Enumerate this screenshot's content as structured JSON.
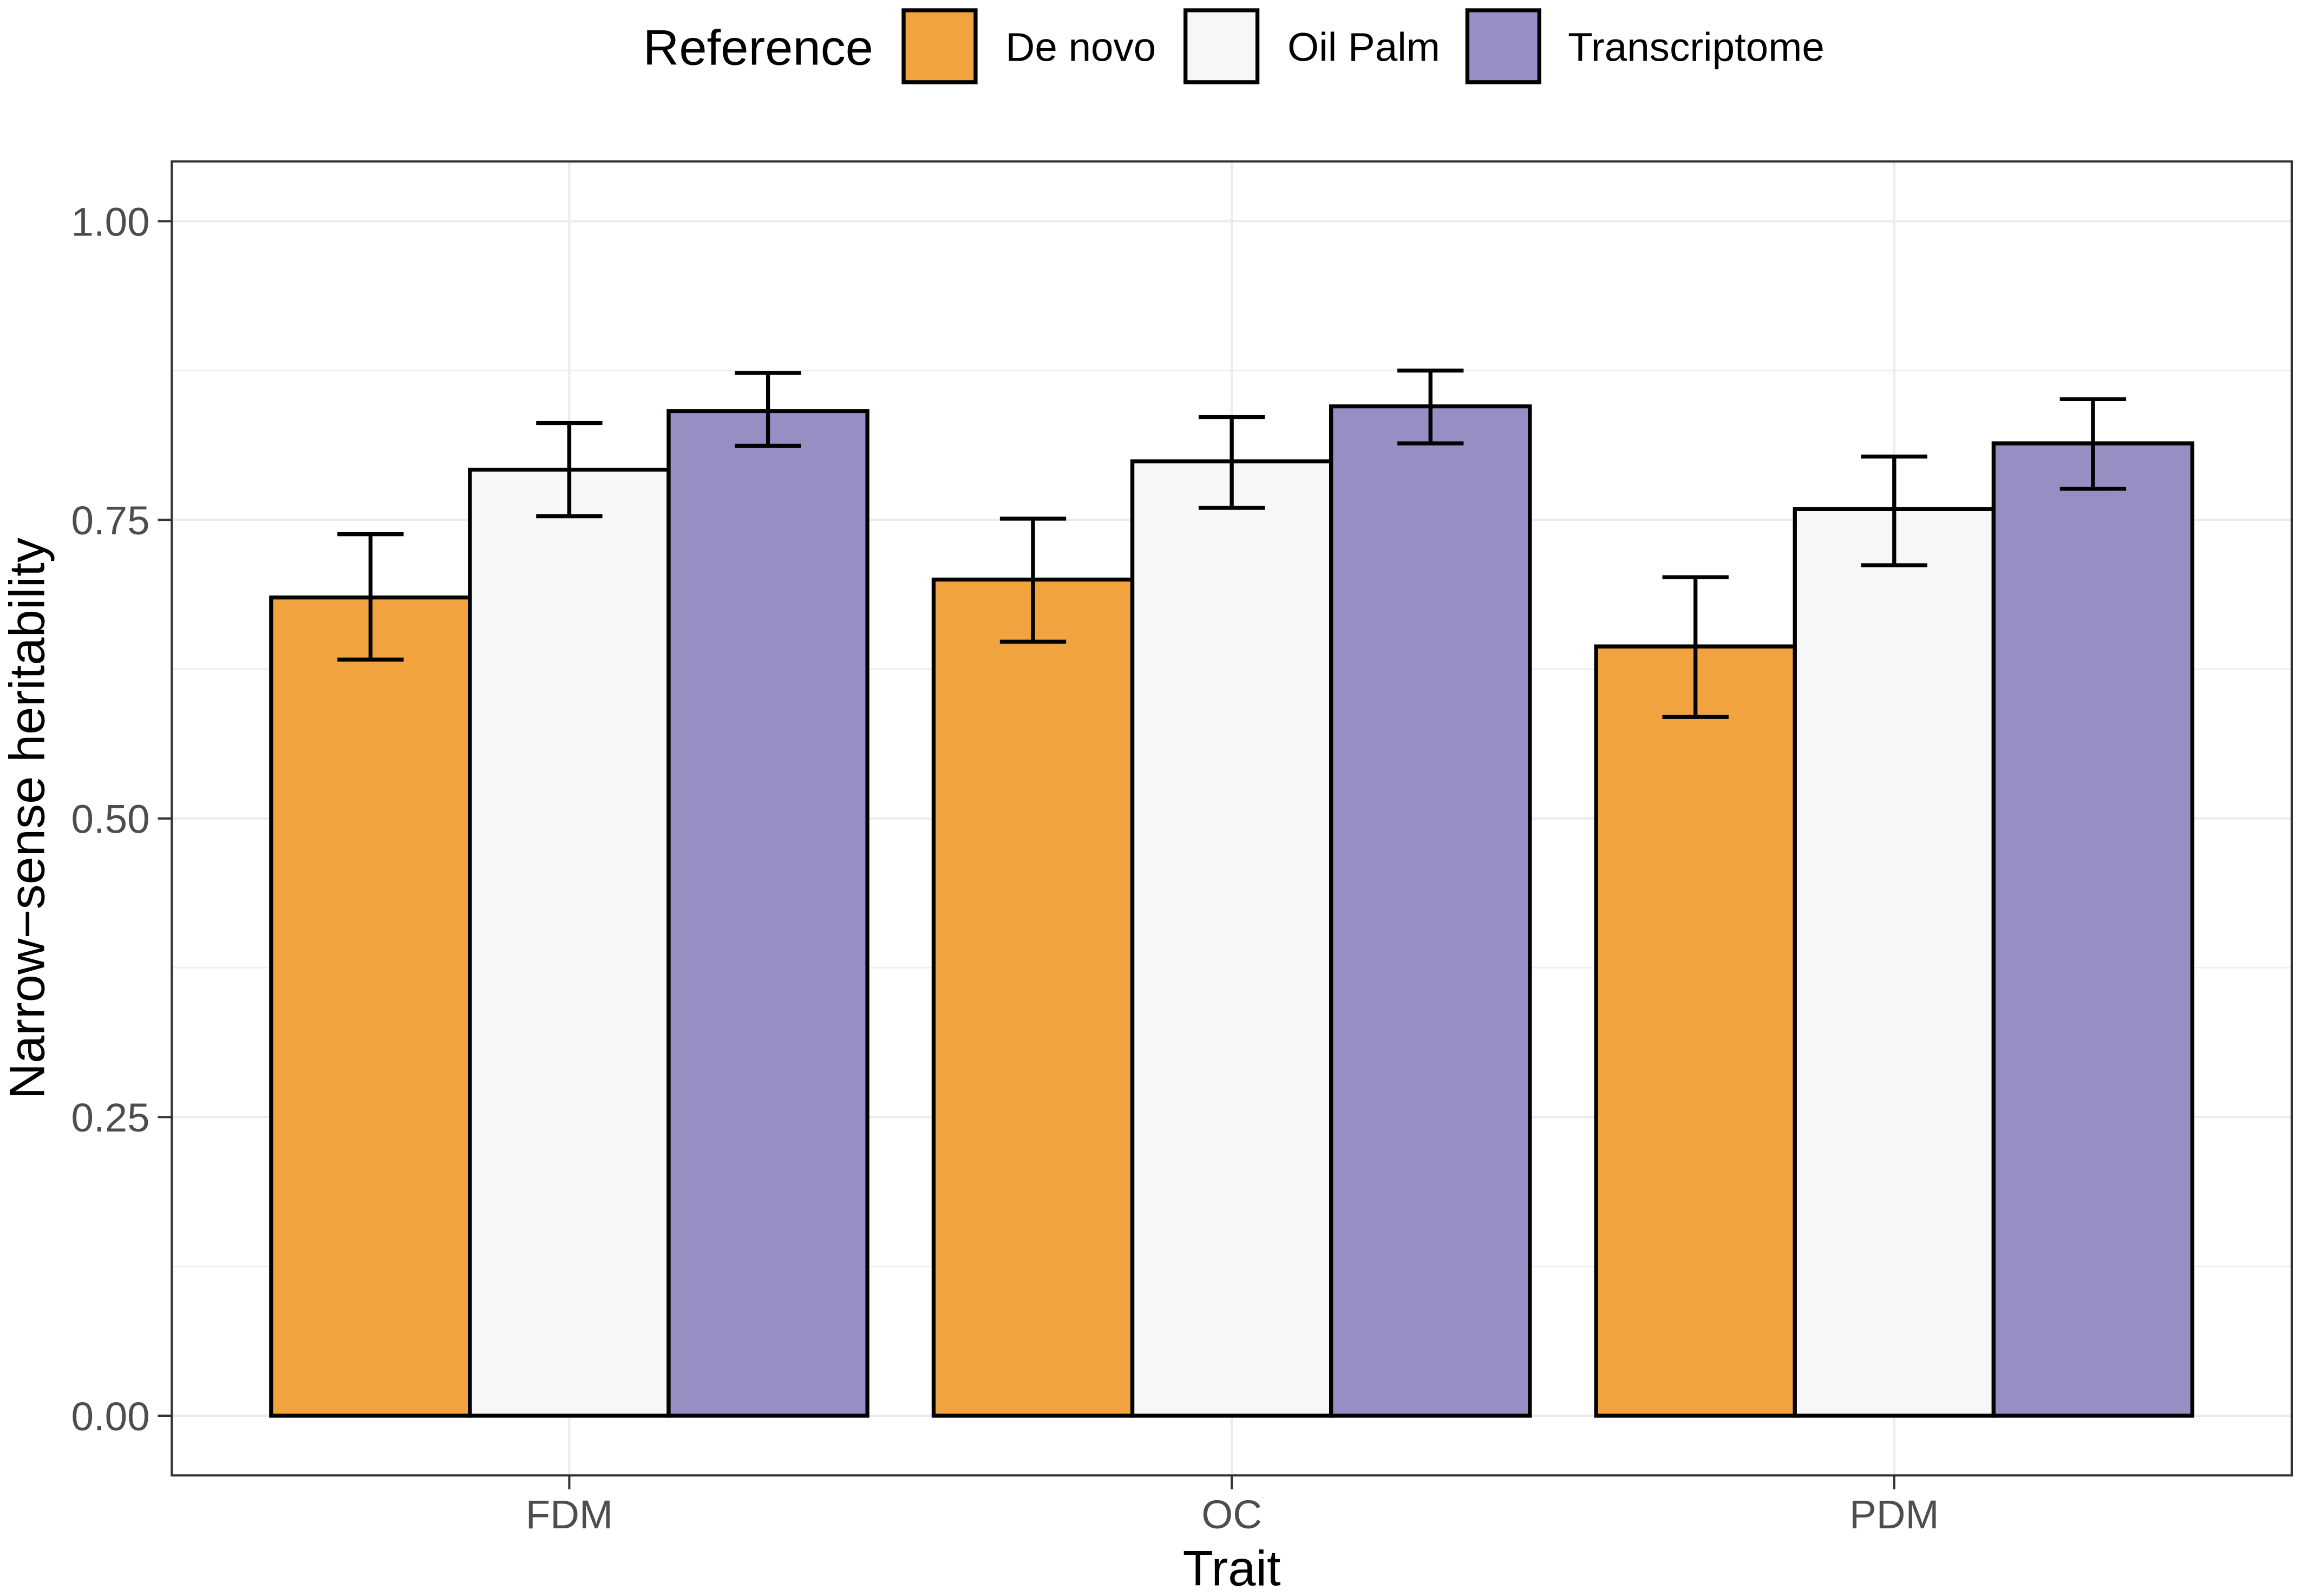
{
  "chart_data": {
    "type": "bar",
    "xlabel": "Trait",
    "ylabel": "Narrow−sense heritability",
    "categories": [
      "FDM",
      "OC",
      "PDM"
    ],
    "ylim": [
      -0.05,
      1.05
    ],
    "yticks": [
      0,
      0.25,
      0.5,
      0.75,
      1.0
    ],
    "ytick_labels": [
      "0.00",
      "0.25",
      "0.50",
      "0.75",
      "1.00"
    ],
    "grid": true,
    "legend": {
      "title": "Reference",
      "position": "top"
    },
    "series": [
      {
        "name": "De novo",
        "color": "#F1A340",
        "values": [
          0.685,
          0.7,
          0.644
        ],
        "error_lower": [
          0.633,
          0.648,
          0.585
        ],
        "error_upper": [
          0.738,
          0.751,
          0.702
        ]
      },
      {
        "name": "Oil Palm",
        "color": "#F7F7F7",
        "values": [
          0.792,
          0.799,
          0.759
        ],
        "error_lower": [
          0.753,
          0.76,
          0.712
        ],
        "error_upper": [
          0.831,
          0.836,
          0.803
        ]
      },
      {
        "name": "Transcriptome",
        "color": "#998EC3",
        "values": [
          0.841,
          0.845,
          0.814
        ],
        "error_lower": [
          0.812,
          0.814,
          0.776
        ],
        "error_upper": [
          0.873,
          0.875,
          0.851
        ]
      }
    ]
  }
}
